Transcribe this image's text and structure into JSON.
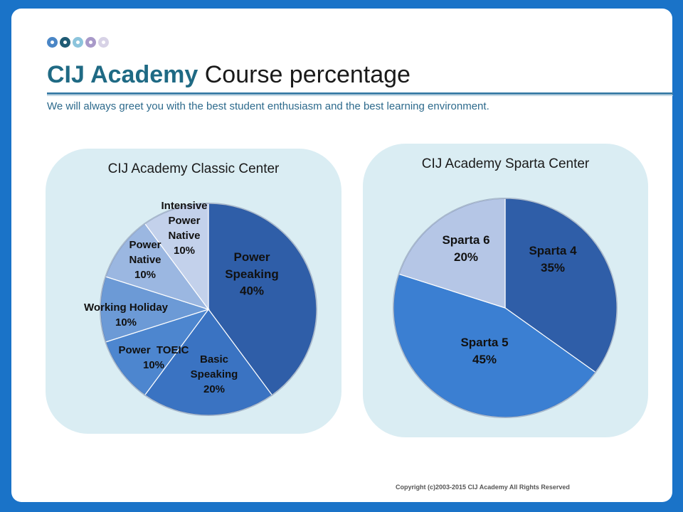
{
  "header": {
    "brand": "CIJ Academy",
    "title_rest": "Course percentage",
    "subtitle": "We will always greet you with the best student enthusiasm and the best learning environment."
  },
  "decor": {
    "dot_colors": [
      "#4a86c6",
      "#1f5b74",
      "#8cc4dc",
      "#a899c9",
      "#d7d2e6"
    ]
  },
  "footer": {
    "copyright": "Copyright (c)2003-2015 CIJ Academy All Rights Reserved"
  },
  "chart_data": [
    {
      "type": "pie",
      "title": "CIJ Academy Classic Center",
      "categories": [
        "Power Speaking",
        "Basic Speaking",
        "Power TOEIC",
        "Working Holiday",
        "Power Native",
        "Intensive Power Native"
      ],
      "values": [
        40,
        20,
        10,
        10,
        10,
        10
      ],
      "labels": [
        "Power\nSpeaking\n40%",
        "Basic\nSpeaking\n20%",
        "Power  TOEIC\n10%",
        "Working Holiday\n10%",
        "Power\nNative\n10%",
        "Intensive\nPower\nNative\n10%"
      ],
      "colors": [
        "#2f5ea8",
        "#3a73c2",
        "#4d86cf",
        "#6c9ad6",
        "#9bb7e1",
        "#c3d1eb"
      ]
    },
    {
      "type": "pie",
      "title": "CIJ Academy Sparta Center",
      "categories": [
        "Sparta 4",
        "Sparta 5",
        "Sparta 6"
      ],
      "values": [
        35,
        45,
        20
      ],
      "labels": [
        "Sparta 4\n35%",
        "Sparta 5\n45%",
        "Sparta 6\n20%"
      ],
      "colors": [
        "#2f5ea8",
        "#3b7fd2",
        "#b5c6e6"
      ]
    }
  ]
}
